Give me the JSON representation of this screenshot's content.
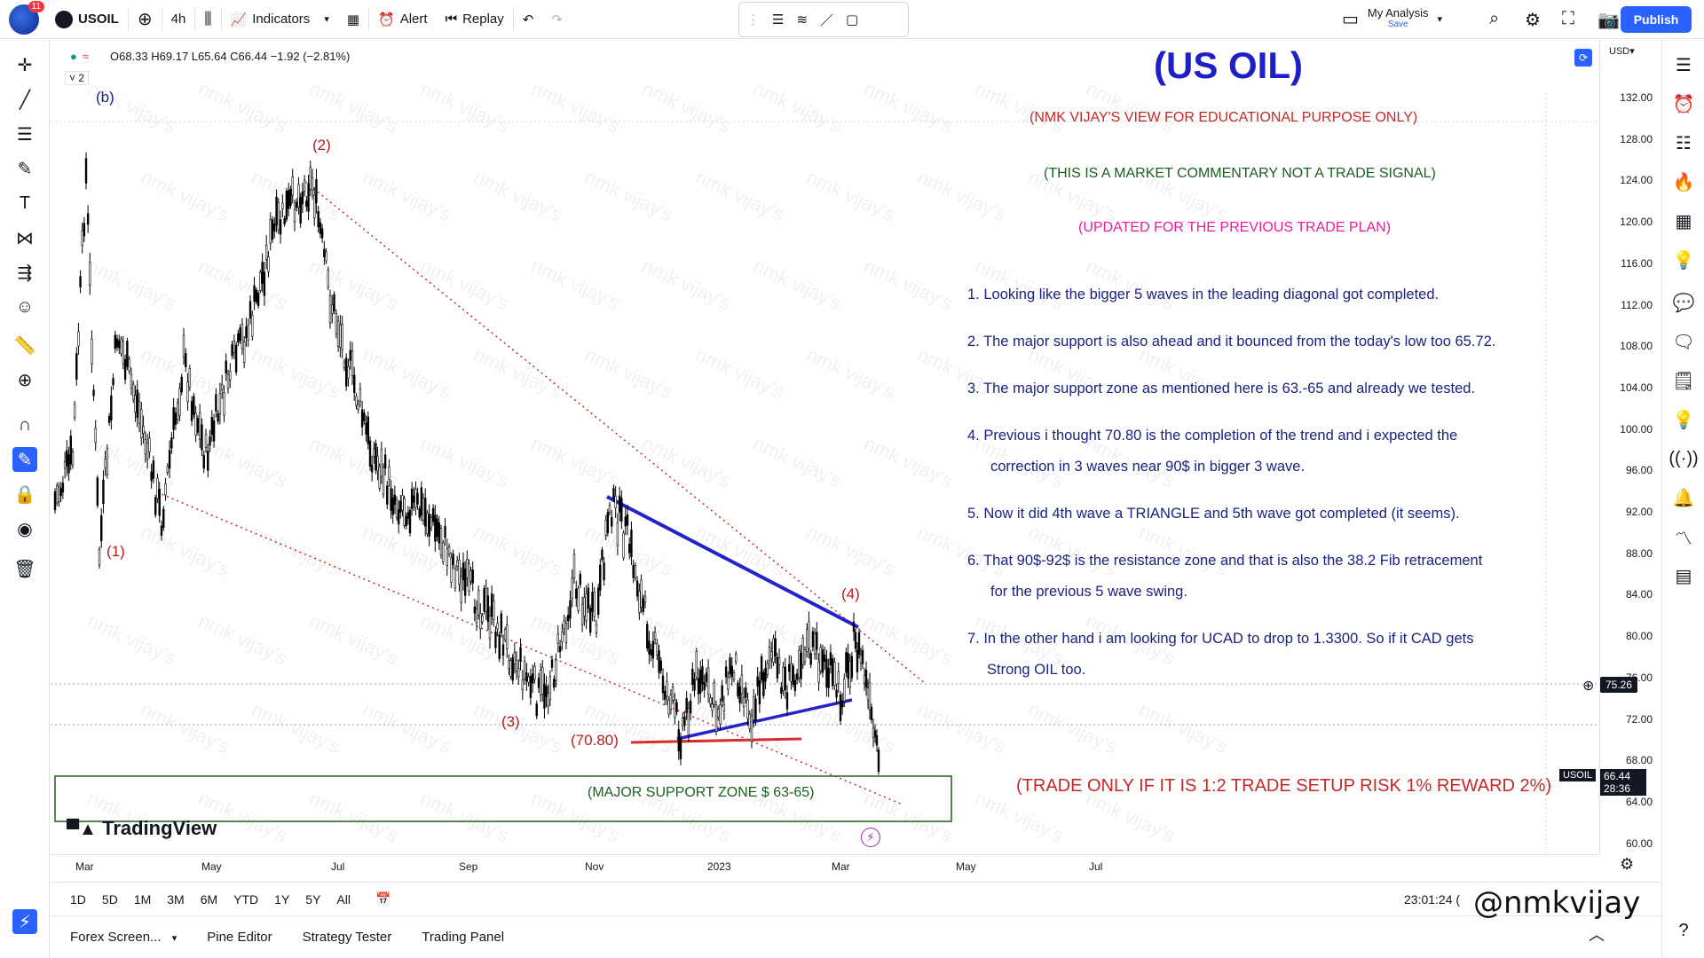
{
  "topbar": {
    "badge": "11",
    "symbol": "USOIL",
    "interval": "4h",
    "indicators": "Indicators",
    "alert": "Alert",
    "replay": "Replay",
    "layout_name": "My Analysis",
    "layout_sub": "Save",
    "publish": "Publish"
  },
  "legend": {
    "ohlc": "O68.33 H69.17 L65.64 C66.44 −1.92 (−2.81%)",
    "count": "2"
  },
  "price_axis": {
    "currency": "USD▾",
    "ticks": [
      "132.00",
      "128.00",
      "124.00",
      "120.00",
      "116.00",
      "112.00",
      "108.00",
      "104.00",
      "100.00",
      "96.00",
      "92.00",
      "88.00",
      "84.00",
      "80.00",
      "76.00",
      "72.00",
      "68.00",
      "64.00",
      "60.00"
    ],
    "crosshair": "75.26",
    "last_symbol": "USOIL",
    "last_price": "66.44",
    "countdown": "28:36"
  },
  "time_axis": {
    "labels": [
      "Mar",
      "May",
      "Jul",
      "Sep",
      "Nov",
      "2023",
      "Mar",
      "May",
      "Jul"
    ]
  },
  "timeframes": [
    "1D",
    "5D",
    "1M",
    "3M",
    "6M",
    "YTD",
    "1Y",
    "5Y",
    "All"
  ],
  "clock": "23:01:24 (",
  "bottom_tabs": [
    "Forex Screen...",
    "Pine Editor",
    "Strategy Tester",
    "Trading Panel"
  ],
  "brand": "TradingView",
  "annotations": {
    "title": "(US OIL)",
    "disclaimer": "(NMK VIJAY'S VIEW FOR EDUCATIONAL PURPOSE ONLY)",
    "commentary": "(THIS IS A MARKET COMMENTARY NOT A TRADE SIGNAL)",
    "updated": "(UPDATED FOR THE PREVIOUS TRADE PLAN)",
    "points": [
      "1. Looking like the bigger 5 waves in the leading diagonal got completed.",
      "2. The major support is also ahead and it bounced from the today's low too 65.72.",
      "3. The major support zone as mentioned here is 63.-65 and already we tested.",
      "4. Previous i thought 70.80 is the completion of the trend and i expected the",
      "correction in 3 waves near 90$ in bigger 3 wave.",
      "5. Now it did 4th wave a TRIANGLE and 5th wave got completed (it seems).",
      "6. That 90$-92$ is the resistance zone and that is also the 38.2 Fib retracement",
      "for the previous 5 wave swing.",
      "7. In the other hand i am looking for UCAD to drop to 1.3300. So if it CAD gets",
      "Strong OIL too."
    ],
    "trade_rule": "(TRADE ONLY IF IT IS 1:2 TRADE SETUP RISK 1% REWARD 2%)",
    "support_zone": "(MAJOR SUPPORT ZONE $ 63-65)",
    "level_7080": "(70.80)",
    "waves": {
      "b": "(b)",
      "w1": "(1)",
      "w2": "(2)",
      "w3": "(3)",
      "w4": "(4)"
    },
    "watermark": "nmk vijay's",
    "signature": "@nmkvijay"
  }
}
